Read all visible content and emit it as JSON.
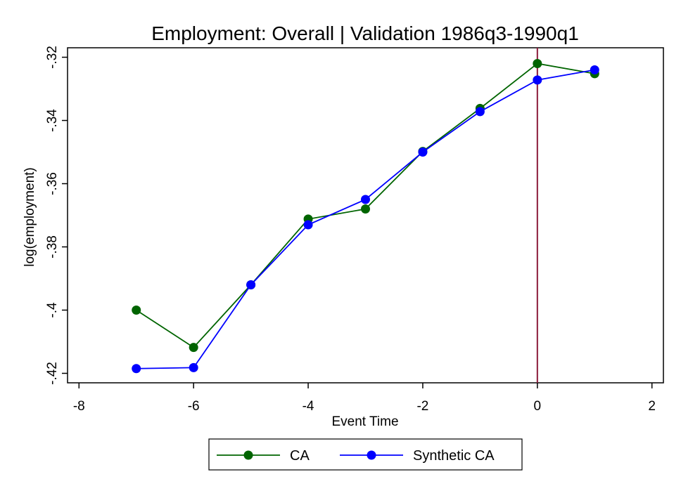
{
  "chart_data": {
    "type": "line",
    "title": "Employment: Overall | Validation 1986q3-1990q1",
    "xlabel": "Event Time",
    "ylabel": "log(employment)",
    "xlim": [
      -8.2,
      2.2
    ],
    "ylim": [
      -0.423,
      -0.317
    ],
    "xticks": [
      -8,
      -6,
      -4,
      -2,
      0,
      2
    ],
    "xtick_labels": [
      "-8",
      "-6",
      "-4",
      "-2",
      "0",
      "2"
    ],
    "yticks": [
      -0.32,
      -0.34,
      -0.36,
      -0.38,
      -0.4,
      -0.42
    ],
    "ytick_labels": [
      "-.32",
      "-.34",
      "-.36",
      "-.38",
      "-.4",
      "-.42"
    ],
    "vline": {
      "x": 0,
      "color": "#8b1a3a"
    },
    "legend_position": "bottom",
    "grid": false,
    "x": [
      -7,
      -6,
      -5,
      -4,
      -3,
      -2,
      -1,
      0,
      1
    ],
    "series": [
      {
        "name": "CA",
        "color": "#006400",
        "values": [
          -0.4,
          -0.4118,
          -0.392,
          -0.3712,
          -0.368,
          -0.3498,
          -0.3362,
          -0.322,
          -0.3252
        ]
      },
      {
        "name": "Synthetic CA",
        "color": "#0000ff",
        "values": [
          -0.4185,
          -0.4182,
          -0.392,
          -0.373,
          -0.365,
          -0.35,
          -0.3372,
          -0.3272,
          -0.324
        ]
      }
    ]
  }
}
